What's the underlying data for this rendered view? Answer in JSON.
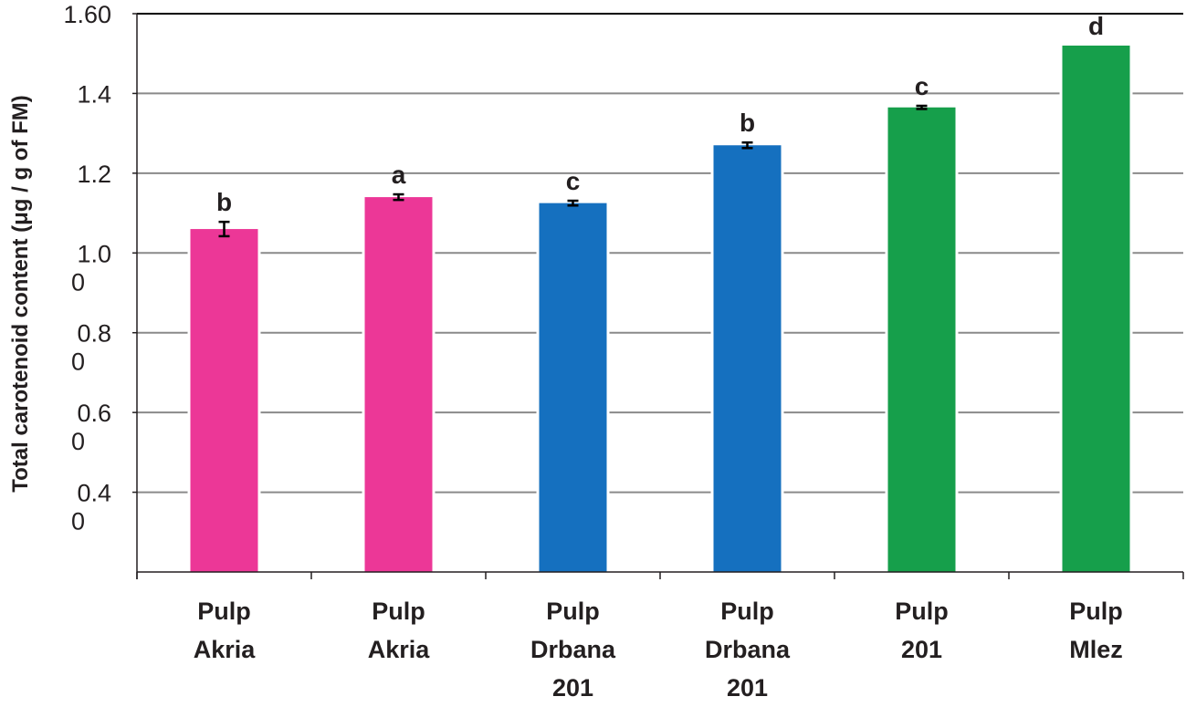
{
  "chart_data": {
    "type": "bar",
    "title": "",
    "xlabel": "",
    "ylabel": "Total carotenoid content (μg / g of FM)",
    "ylim": [
      0.2,
      1.6
    ],
    "grid": true,
    "legend": "none",
    "y_ticks": [
      {
        "value": 1.6,
        "lines": [
          "1.60"
        ]
      },
      {
        "value": 1.4,
        "lines": [
          "1.4"
        ]
      },
      {
        "value": 1.2,
        "lines": [
          "1.2"
        ]
      },
      {
        "value": 1.0,
        "lines": [
          "1.0",
          "0"
        ]
      },
      {
        "value": 0.8,
        "lines": [
          "0.8",
          "0"
        ]
      },
      {
        "value": 0.6,
        "lines": [
          "0.6",
          "0"
        ]
      },
      {
        "value": 0.4,
        "lines": [
          "0.4",
          "0"
        ]
      }
    ],
    "categories": [
      [
        "Pulp",
        "Akria"
      ],
      [
        "Pulp",
        "Akria"
      ],
      [
        "Pulp",
        "Drbana",
        "201"
      ],
      [
        "Pulp",
        "Drbana",
        "201"
      ],
      [
        "Pulp",
        "201"
      ],
      [
        "Pulp",
        "Mlez"
      ]
    ],
    "values": [
      1.06,
      1.14,
      1.125,
      1.27,
      1.365,
      1.52
    ],
    "errors": [
      0.018,
      0.007,
      0.006,
      0.007,
      0.004,
      0
    ],
    "significance_letters": [
      "b",
      "a",
      "c",
      "b",
      "c",
      "d"
    ],
    "colors": [
      "#ec3797",
      "#ec3797",
      "#1570bf",
      "#1570bf",
      "#169f4b",
      "#169f4b"
    ]
  }
}
